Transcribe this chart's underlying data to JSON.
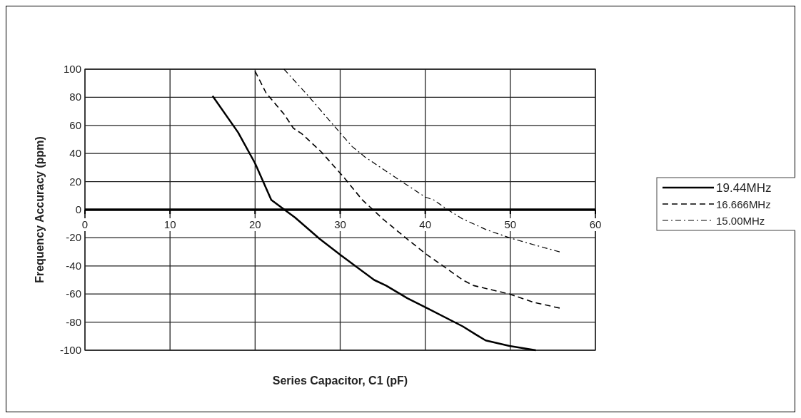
{
  "chart_data": {
    "type": "line",
    "xlabel": "Series Capacitor, C1 (pF)",
    "ylabel": "Frequency Accuracy (ppm)",
    "xlim": [
      0,
      60
    ],
    "ylim": [
      -100,
      100
    ],
    "xticks": [
      0,
      10,
      20,
      30,
      40,
      50,
      60
    ],
    "yticks": [
      -100,
      -80,
      -60,
      -40,
      -20,
      0,
      20,
      40,
      60,
      80,
      100
    ],
    "grid": true,
    "legend": "right",
    "marker": "none",
    "series": [
      {
        "name": "19.44MHz",
        "color": "#000000",
        "line_style": "solid",
        "x": [
          15,
          18,
          20,
          21.9,
          24.7,
          27.6,
          30.1,
          34,
          35.4,
          37.9,
          40.2,
          44.4,
          46,
          47.1,
          49.9,
          53
        ],
        "values": [
          81,
          55,
          33,
          7,
          -5.6,
          -20.8,
          -32.5,
          -50,
          -54,
          -63,
          -70,
          -83,
          -89,
          -93,
          -97,
          -100
        ]
      },
      {
        "name": "16.666MHz",
        "color": "#000000",
        "line_style": "dashed",
        "x": [
          20,
          21.3,
          23.4,
          24.5,
          25.5,
          27.8,
          30.3,
          32.6,
          35.1,
          37.9,
          40.2,
          42.1,
          44.4,
          45.7,
          49.9,
          52.8,
          55.8
        ],
        "values": [
          98.5,
          83,
          68,
          58,
          54,
          41,
          24,
          7,
          -7,
          -21,
          -32,
          -40,
          -50,
          -54,
          -60,
          -66,
          -70
        ]
      },
      {
        "name": "15.00MHz",
        "color": "#000000",
        "line_style": "dashdot",
        "x": [
          23.4,
          26.1,
          27.6,
          30.1,
          31.4,
          32.9,
          35,
          38,
          40,
          41,
          42.4,
          44.4,
          47.1,
          49.9,
          52.8,
          55.8
        ],
        "values": [
          100,
          82,
          71.5,
          54,
          45,
          37.6,
          29,
          17,
          9,
          7,
          1,
          -6.6,
          -14,
          -20,
          -25,
          -30
        ]
      }
    ]
  }
}
